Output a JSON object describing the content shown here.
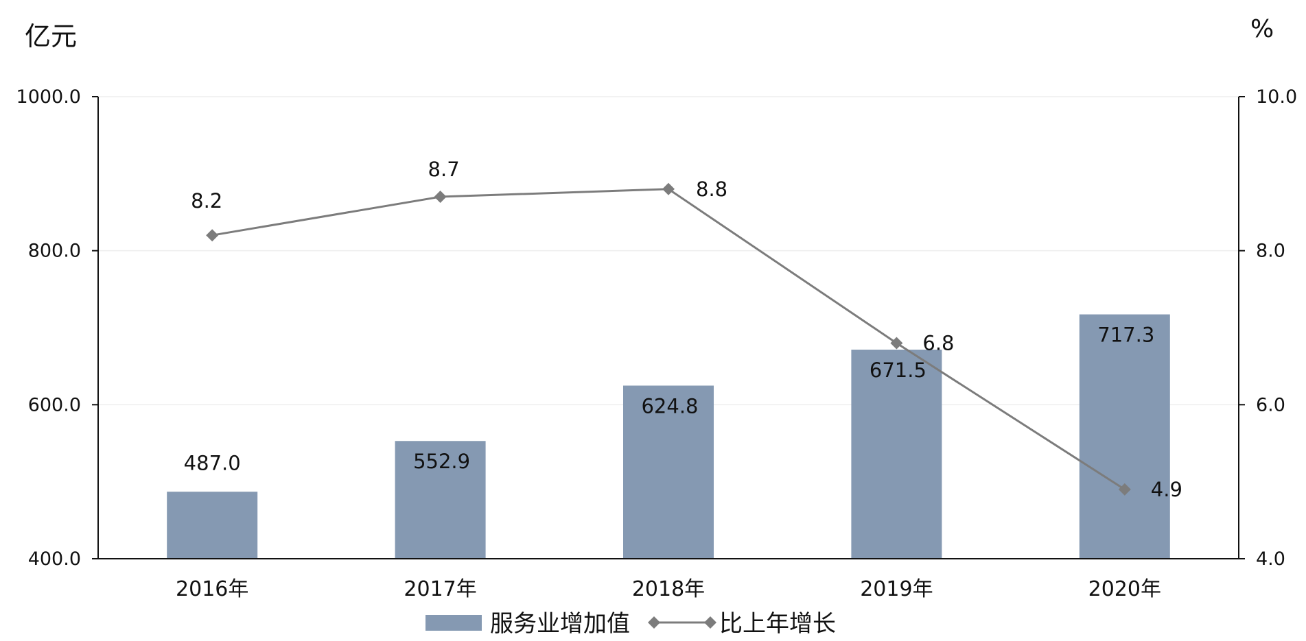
{
  "units": {
    "left": "亿元",
    "right": "%"
  },
  "colors": {
    "bar": "#8599b2",
    "line": "#7c7c7c",
    "axis": "#111111",
    "grid": "#eeeeee"
  },
  "chart_data": {
    "type": "bar",
    "categories": [
      "2016年",
      "2017年",
      "2018年",
      "2019年",
      "2020年"
    ],
    "series": [
      {
        "name": "服务业增加值",
        "type": "bar",
        "axis": "left",
        "values": [
          487.0,
          552.9,
          624.8,
          671.5,
          717.3
        ],
        "labels": [
          "487.0",
          "552.9",
          "624.8",
          "671.5",
          "717.3"
        ]
      },
      {
        "name": "比上年增长",
        "type": "line",
        "axis": "right",
        "marker": "diamond",
        "values": [
          8.2,
          8.7,
          8.8,
          6.8,
          4.9
        ],
        "labels": [
          "8.2",
          "8.7",
          "8.8",
          "6.8",
          "4.9"
        ]
      }
    ],
    "y_left": {
      "range": [
        400,
        1000
      ],
      "ticks": [
        "400.0",
        "600.0",
        "800.0",
        "1000.0"
      ]
    },
    "y_right": {
      "range": [
        4,
        10
      ],
      "ticks": [
        "4.0",
        "6.0",
        "8.0",
        "10.0"
      ]
    },
    "grid": true,
    "legend": "bottom"
  }
}
